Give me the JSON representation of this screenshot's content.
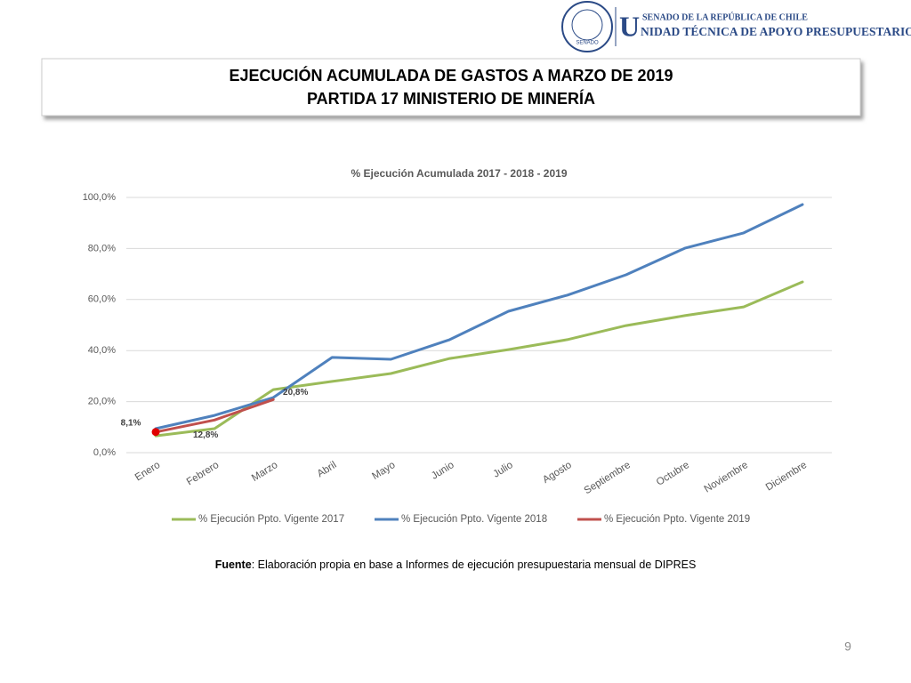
{
  "header": {
    "seal": "SENADO",
    "top": "SENADO DE LA REPÚBLICA DE CHILE",
    "unit_initial": "U",
    "unit_rest": "NIDAD TÉCNICA DE APOYO PRESUPUESTARIO"
  },
  "slide_title": {
    "line1": "EJECUCIÓN ACUMULADA DE GASTOS A MARZO DE 2019",
    "line2": "PARTIDA 17 MINISTERIO DE MINERÍA"
  },
  "chart_data": {
    "type": "line",
    "title": "% Ejecución Acumulada  2017 - 2018 - 2019",
    "categories": [
      "Enero",
      "Febrero",
      "Marzo",
      "Abril",
      "Mayo",
      "Junio",
      "Julio",
      "Agosto",
      "Septiembre",
      "Octubre",
      "Noviembre",
      "Diciembre"
    ],
    "series": [
      {
        "name": "% Ejecución Ppto. Vigente 2017",
        "color": "#9bbb59",
        "values": [
          6.6,
          9.4,
          24.7,
          27.9,
          31.0,
          36.9,
          40.4,
          44.3,
          49.8,
          53.7,
          57.1,
          66.9
        ]
      },
      {
        "name": "% Ejecución Ppto. Vigente 2018",
        "color": "#4f81bd",
        "values": [
          9.4,
          14.6,
          21.6,
          37.3,
          36.6,
          44.3,
          55.4,
          61.7,
          69.7,
          80.1,
          86.1,
          97.2
        ]
      },
      {
        "name": "% Ejecución Ppto. Vigente 2019",
        "color": "#c0504d",
        "values": [
          8.1,
          12.8,
          20.8,
          null,
          null,
          null,
          null,
          null,
          null,
          null,
          null,
          null
        ],
        "value_labels": [
          "8,1%",
          "12,8%",
          "20,8%",
          null,
          null,
          null,
          null,
          null,
          null,
          null,
          null,
          null
        ]
      }
    ],
    "ylim": [
      0,
      100
    ],
    "yticks": [
      {
        "value": 0,
        "label": "0,0%"
      },
      {
        "value": 20,
        "label": "20,0%"
      },
      {
        "value": 40,
        "label": "40,0%"
      },
      {
        "value": 60,
        "label": "60,0%"
      },
      {
        "value": 80,
        "label": "80,0%"
      },
      {
        "value": 100,
        "label": "100,0%"
      }
    ],
    "grid": true,
    "legend": "bottom"
  },
  "footnote": {
    "label": "Fuente",
    "text": ": Elaboración propia en base  a Informes de ejecución presupuestaria mensual de DIPRES"
  },
  "page_number": "9"
}
